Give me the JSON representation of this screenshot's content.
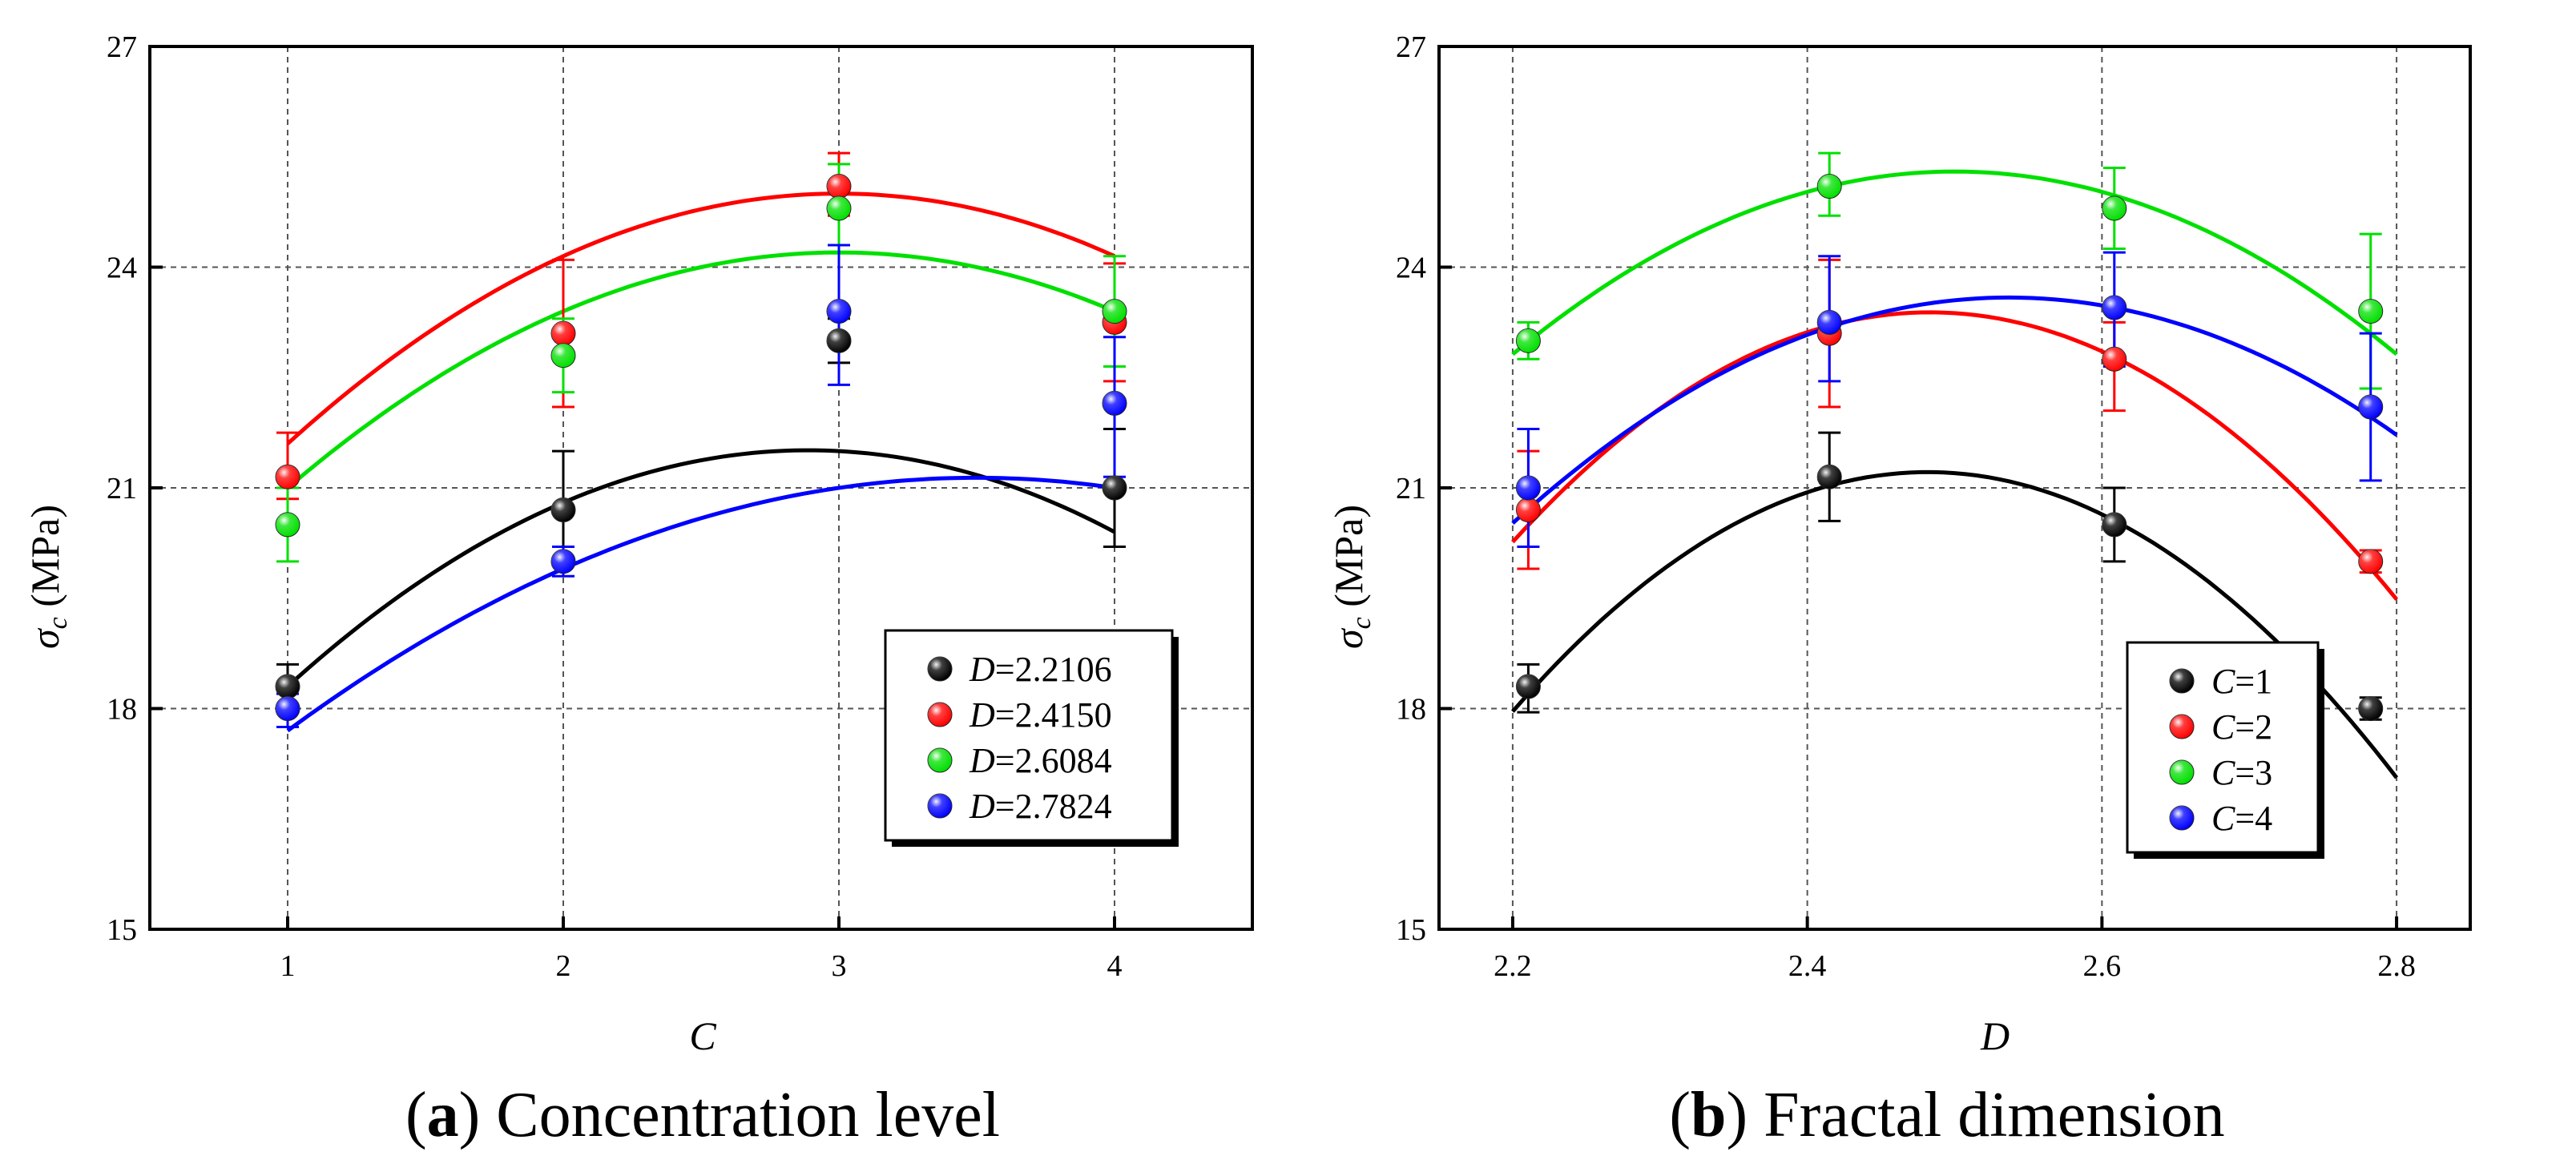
{
  "chart_data": [
    {
      "id": "a",
      "type": "scatter",
      "caption_letter": "a",
      "caption_rest": " Concentration level",
      "xlabel": "C",
      "ylabel_symbol": "σ",
      "ylabel_sub": "c",
      "ylabel_unit": " (MPa)",
      "xlim": [
        0.5,
        4.5
      ],
      "ylim": [
        15,
        27
      ],
      "xticks": [
        1,
        2,
        3,
        4
      ],
      "xtick_labels": [
        "1",
        "2",
        "3",
        "4"
      ],
      "yticks": [
        15,
        18,
        21,
        24,
        27
      ],
      "ytick_labels": [
        "15",
        "18",
        "21",
        "24",
        "27"
      ],
      "grid": true,
      "legend_position": "lower-right",
      "series": [
        {
          "name": "D",
          "value_label": "=2.2106",
          "color": "#000000",
          "x": [
            1,
            2,
            3,
            4
          ],
          "y": [
            18.3,
            20.7,
            23.0,
            21.0
          ],
          "err_up": [
            0.3,
            0.8,
            0.3,
            0.8
          ],
          "err_down": [
            0.3,
            0.7,
            0.3,
            0.8
          ],
          "fit": [
            -0.9,
            5.2,
            14.0
          ]
        },
        {
          "name": "D",
          "value_label": "=2.4150",
          "color": "#ff0000",
          "x": [
            1,
            2,
            3,
            4
          ],
          "y": [
            21.15,
            23.1,
            25.1,
            23.25
          ],
          "err_up": [
            0.6,
            1.0,
            0.45,
            0.8
          ],
          "err_down": [
            0.3,
            1.0,
            0.4,
            0.8
          ],
          "fit": [
            -0.85,
            5.1,
            17.35
          ]
        },
        {
          "name": "D",
          "value_label": "=2.6084",
          "color": "#00e000",
          "x": [
            1,
            2,
            3,
            4
          ],
          "y": [
            20.5,
            22.8,
            24.8,
            23.4
          ],
          "err_up": [
            0.5,
            0.5,
            0.6,
            0.75
          ],
          "err_down": [
            0.5,
            0.5,
            0.6,
            0.75
          ],
          "fit": [
            -0.8,
            4.8,
            17.0
          ]
        },
        {
          "name": "D",
          "value_label": "=2.7824",
          "color": "#0000ff",
          "x": [
            1,
            2,
            3,
            4
          ],
          "y": [
            18.0,
            20.0,
            23.4,
            22.15
          ],
          "err_up": [
            0.2,
            0.2,
            0.9,
            0.9
          ],
          "err_down": [
            0.25,
            0.2,
            1.0,
            1.0
          ],
          "fit": [
            -0.55,
            3.85,
            14.4
          ]
        }
      ]
    },
    {
      "id": "b",
      "type": "scatter",
      "caption_letter": "b",
      "caption_rest": " Fractal dimension",
      "xlabel": "D",
      "ylabel_symbol": "σ",
      "ylabel_sub": "c",
      "ylabel_unit": " (MPa)",
      "xlim": [
        2.15,
        2.85
      ],
      "ylim": [
        15,
        27
      ],
      "xticks": [
        2.2,
        2.4,
        2.6,
        2.8
      ],
      "xtick_labels": [
        "2.2",
        "2.4",
        "2.6",
        "2.8"
      ],
      "yticks": [
        15,
        18,
        21,
        24,
        27
      ],
      "ytick_labels": [
        "15",
        "18",
        "21",
        "24",
        "27"
      ],
      "grid": true,
      "legend_position": "lower-right",
      "series": [
        {
          "name": "C",
          "value_label": "=1",
          "color": "#000000",
          "x": [
            2.2106,
            2.415,
            2.6084,
            2.7824
          ],
          "y": [
            18.3,
            21.15,
            20.5,
            18.0
          ],
          "err_up": [
            0.3,
            0.6,
            0.5,
            0.15
          ],
          "err_down": [
            0.35,
            0.6,
            0.5,
            0.15
          ],
          "fit": [
            -41.0,
            203.5,
            -231.3
          ]
        },
        {
          "name": "C",
          "value_label": "=2",
          "color": "#ff0000",
          "x": [
            2.2106,
            2.415,
            2.6084,
            2.7824
          ],
          "y": [
            20.7,
            23.1,
            22.75,
            20.0
          ],
          "err_up": [
            0.8,
            1.0,
            0.5,
            0.15
          ],
          "err_down": [
            0.8,
            1.0,
            0.7,
            0.15
          ],
          "fit": [
            -38.9,
            193.2,
            -216.5
          ]
        },
        {
          "name": "C",
          "value_label": "=3",
          "color": "#00e000",
          "x": [
            2.2106,
            2.415,
            2.6084,
            2.7824
          ],
          "y": [
            23.0,
            25.1,
            24.8,
            23.4
          ],
          "err_up": [
            0.25,
            0.45,
            0.55,
            1.05
          ],
          "err_down": [
            0.25,
            0.4,
            0.55,
            1.05
          ],
          "fit": [
            -27.6,
            138.0,
            -147.2
          ]
        },
        {
          "name": "C",
          "value_label": "=4",
          "color": "#0000ff",
          "x": [
            2.2106,
            2.415,
            2.6084,
            2.7824
          ],
          "y": [
            21.0,
            23.25,
            23.45,
            22.1
          ],
          "err_up": [
            0.8,
            0.9,
            0.75,
            1.0
          ],
          "err_down": [
            0.8,
            0.8,
            0.8,
            1.0
          ],
          "fit": [
            -27.0,
            137.0,
            -150.2
          ]
        }
      ]
    }
  ]
}
